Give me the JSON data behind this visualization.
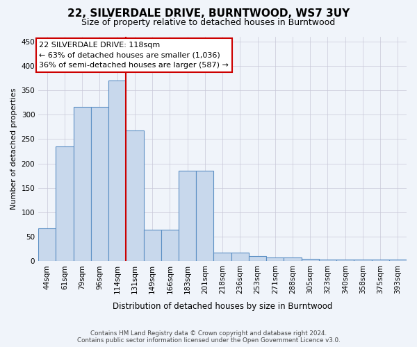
{
  "title": "22, SILVERDALE DRIVE, BURNTWOOD, WS7 3UY",
  "subtitle": "Size of property relative to detached houses in Burntwood",
  "xlabel": "Distribution of detached houses by size in Burntwood",
  "ylabel": "Number of detached properties",
  "footer_line1": "Contains HM Land Registry data © Crown copyright and database right 2024.",
  "footer_line2": "Contains public sector information licensed under the Open Government Licence v3.0.",
  "categories": [
    "44sqm",
    "61sqm",
    "79sqm",
    "96sqm",
    "114sqm",
    "131sqm",
    "149sqm",
    "166sqm",
    "183sqm",
    "201sqm",
    "218sqm",
    "236sqm",
    "253sqm",
    "271sqm",
    "288sqm",
    "305sqm",
    "323sqm",
    "340sqm",
    "358sqm",
    "375sqm",
    "393sqm"
  ],
  "values": [
    68,
    235,
    316,
    316,
    370,
    268,
    65,
    65,
    185,
    185,
    18,
    17,
    10,
    8,
    8,
    5,
    4,
    4,
    4,
    3,
    3
  ],
  "bar_color": "#c8d8ec",
  "bar_edge_color": "#5b8fc4",
  "background_color": "#f0f4fa",
  "grid_color": "#c8c8d8",
  "vline_color": "#cc0000",
  "vline_x": 4.5,
  "annotation_line1": "22 SILVERDALE DRIVE: 118sqm",
  "annotation_line2": "← 63% of detached houses are smaller (1,036)",
  "annotation_line3": "36% of semi-detached houses are larger (587) →",
  "annotation_box_edge_color": "#cc0000",
  "annotation_box_fill": "#ffffff",
  "ylim": [
    0,
    460
  ],
  "yticks": [
    0,
    50,
    100,
    150,
    200,
    250,
    300,
    350,
    400,
    450
  ],
  "title_fontsize": 11,
  "subtitle_fontsize": 9,
  "ylabel_fontsize": 8,
  "xlabel_fontsize": 8.5,
  "tick_fontsize": 7.5,
  "annot_fontsize": 8
}
